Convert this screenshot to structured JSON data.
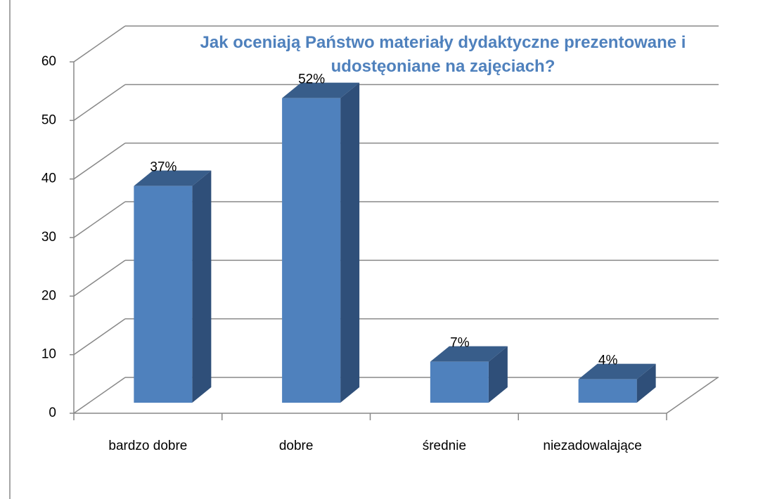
{
  "chart_data": {
    "type": "bar3d",
    "title": "Jak oceniają Państwo materiały dydaktyczne prezentowane i udostęoniane na zajęciach?",
    "categories": [
      "bardzo dobre",
      "dobre",
      "średnie",
      "niezadowalające"
    ],
    "values": [
      37,
      52,
      7,
      4
    ],
    "value_labels": [
      "37%",
      "52%",
      "7%",
      "4%"
    ],
    "color": "#4f81bd",
    "ylim": [
      0,
      60
    ],
    "yticks": [
      0,
      10,
      20,
      30,
      40,
      50,
      60
    ],
    "grid": true
  }
}
